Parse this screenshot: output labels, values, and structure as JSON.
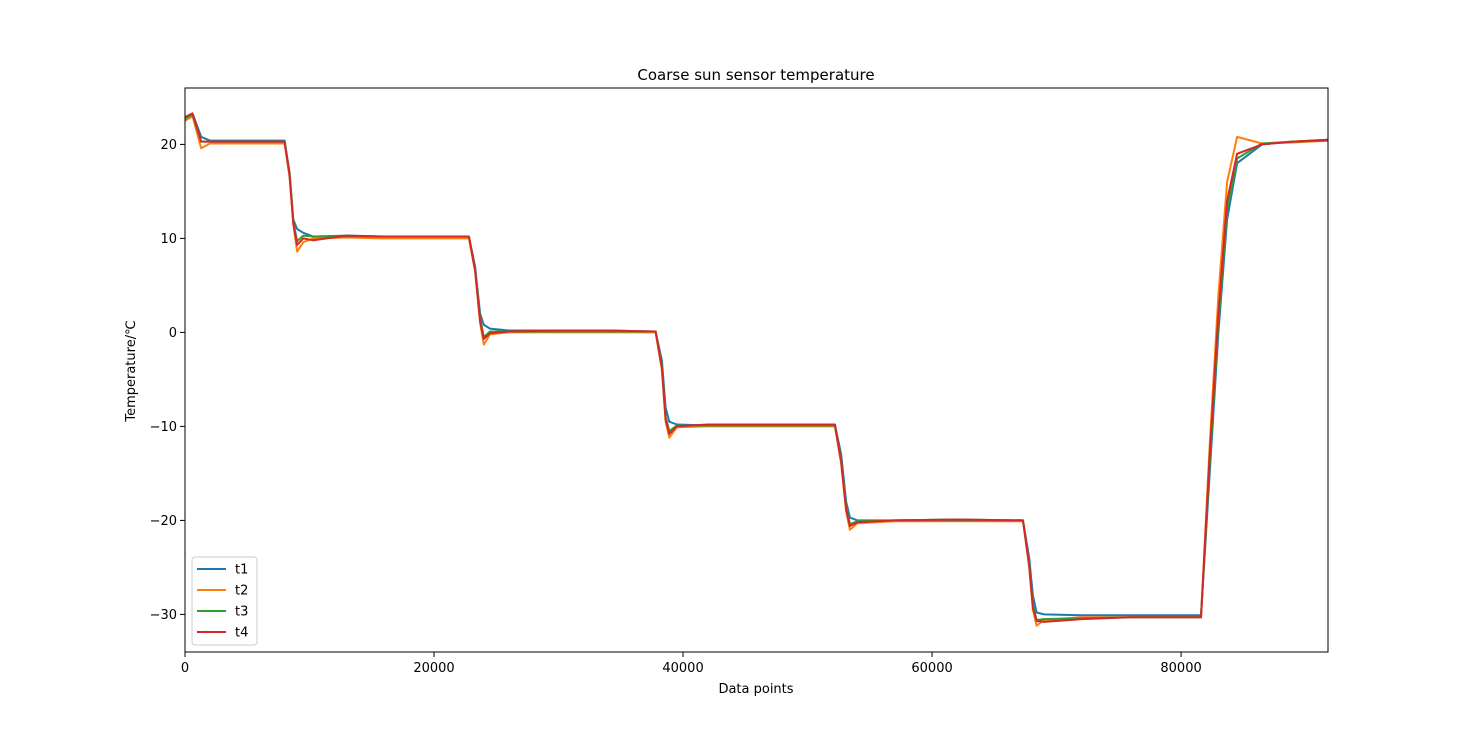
{
  "chart_data": {
    "type": "line",
    "title": "Coarse sun sensor temperature",
    "xlabel": "Data points",
    "ylabel": "Temperature/℃",
    "xlim": [
      0,
      91800
    ],
    "ylim": [
      -34,
      26
    ],
    "xticks": [
      0,
      20000,
      40000,
      60000,
      80000
    ],
    "xtick_labels": [
      "0",
      "20000",
      "40000",
      "60000",
      "80000"
    ],
    "yticks": [
      -30,
      -20,
      -10,
      0,
      10,
      20
    ],
    "ytick_labels": [
      "−30",
      "−20",
      "−10",
      "0",
      "10",
      "20"
    ],
    "grid": false,
    "legend_position": "bottom-left",
    "colors": {
      "t1": "#1f77b4",
      "t2": "#ff7f0e",
      "t3": "#2ca02c",
      "t4": "#d62728"
    },
    "series": [
      {
        "name": "t1",
        "x": [
          0,
          600,
          1300,
          2000,
          5000,
          8000,
          8400,
          8700,
          9000,
          9500,
          10300,
          13000,
          16000,
          19000,
          22800,
          23300,
          23700,
          24000,
          24500,
          26000,
          30000,
          34000,
          37800,
          38300,
          38600,
          38900,
          39500,
          42000,
          46000,
          50000,
          52200,
          52700,
          53100,
          53400,
          54000,
          57000,
          62000,
          67300,
          67800,
          68100,
          68400,
          69000,
          72000,
          76000,
          81600,
          82300,
          83000,
          83700,
          84500,
          86500,
          89000,
          91800
        ],
        "values": [
          22.8,
          23.3,
          20.8,
          20.4,
          20.4,
          20.4,
          17.0,
          12.0,
          11.0,
          10.6,
          10.2,
          10.3,
          10.2,
          10.2,
          10.2,
          7.0,
          2.0,
          0.8,
          0.4,
          0.2,
          0.2,
          0.2,
          0.1,
          -3.0,
          -8.0,
          -9.5,
          -9.8,
          -9.9,
          -9.8,
          -9.8,
          -9.8,
          -13.0,
          -18.0,
          -19.7,
          -20.0,
          -20.0,
          -19.9,
          -20.0,
          -24.0,
          -28.0,
          -29.8,
          -30.0,
          -30.1,
          -30.1,
          -30.1,
          -15.0,
          0.0,
          12.0,
          18.0,
          20.0,
          20.3,
          20.5
        ]
      },
      {
        "name": "t2",
        "x": [
          0,
          600,
          1300,
          2000,
          5000,
          8000,
          8400,
          8700,
          9000,
          9500,
          10300,
          13000,
          16000,
          19000,
          22800,
          23300,
          23700,
          24000,
          24500,
          26000,
          30000,
          34000,
          37800,
          38300,
          38600,
          38900,
          39500,
          42000,
          46000,
          50000,
          52200,
          52700,
          53100,
          53400,
          54000,
          57000,
          62000,
          67300,
          67800,
          68100,
          68400,
          69000,
          72000,
          76000,
          81600,
          82300,
          83000,
          83700,
          84500,
          86500,
          89000,
          91800
        ],
        "values": [
          22.5,
          23.0,
          19.6,
          20.1,
          20.1,
          20.1,
          16.5,
          11.5,
          8.6,
          9.6,
          10.0,
          10.1,
          10.0,
          10.0,
          10.0,
          6.5,
          1.0,
          -1.3,
          -0.2,
          0.0,
          0.0,
          0.0,
          0.0,
          -4.0,
          -9.5,
          -11.2,
          -10.1,
          -10.0,
          -10.0,
          -10.0,
          -10.0,
          -14.0,
          -19.0,
          -21.0,
          -20.3,
          -20.1,
          -20.1,
          -20.1,
          -25.0,
          -29.5,
          -31.2,
          -30.6,
          -30.3,
          -30.3,
          -30.3,
          -12.0,
          4.0,
          16.0,
          20.8,
          20.1,
          20.2,
          20.4
        ]
      },
      {
        "name": "t3",
        "x": [
          0,
          600,
          1300,
          2000,
          5000,
          8000,
          8400,
          8700,
          9000,
          9500,
          10300,
          13000,
          16000,
          19000,
          22800,
          23300,
          23700,
          24000,
          24500,
          26000,
          30000,
          34000,
          37800,
          38300,
          38600,
          38900,
          39500,
          42000,
          46000,
          50000,
          52200,
          52700,
          53100,
          53400,
          54000,
          57000,
          62000,
          67300,
          67800,
          68100,
          68400,
          69000,
          72000,
          76000,
          81600,
          82300,
          83000,
          83700,
          84500,
          86500,
          89000,
          91800
        ],
        "values": [
          22.7,
          23.2,
          20.3,
          20.3,
          20.3,
          20.3,
          16.8,
          11.8,
          9.7,
          10.3,
          10.2,
          10.2,
          10.2,
          10.2,
          10.2,
          6.8,
          1.5,
          -0.5,
          0.1,
          0.1,
          0.1,
          0.1,
          0.1,
          -3.5,
          -9.0,
          -10.5,
          -9.9,
          -9.9,
          -9.9,
          -9.9,
          -9.9,
          -13.5,
          -18.5,
          -20.4,
          -20.1,
          -20.0,
          -20.0,
          -20.0,
          -24.5,
          -29.0,
          -30.6,
          -30.5,
          -30.4,
          -30.3,
          -30.3,
          -14.0,
          1.0,
          13.0,
          18.5,
          20.1,
          20.3,
          20.4
        ]
      },
      {
        "name": "t4",
        "x": [
          0,
          600,
          1300,
          2000,
          5000,
          8000,
          8400,
          8700,
          9000,
          9500,
          10300,
          13000,
          16000,
          19000,
          22800,
          23300,
          23700,
          24000,
          24500,
          26000,
          30000,
          34000,
          37800,
          38300,
          38600,
          38900,
          39500,
          42000,
          46000,
          50000,
          52200,
          52700,
          53100,
          53400,
          54000,
          57000,
          62000,
          67300,
          67800,
          68100,
          68400,
          69000,
          72000,
          76000,
          81600,
          82300,
          83000,
          83700,
          84500,
          86500,
          89000,
          91800
        ],
        "values": [
          22.9,
          23.3,
          20.3,
          20.3,
          20.3,
          20.3,
          16.7,
          11.6,
          9.3,
          10.0,
          9.8,
          10.3,
          10.2,
          10.2,
          10.2,
          6.6,
          1.2,
          -0.7,
          -0.1,
          0.1,
          0.2,
          0.2,
          0.1,
          -3.8,
          -9.2,
          -10.8,
          -10.0,
          -9.8,
          -9.8,
          -9.8,
          -9.8,
          -13.8,
          -18.8,
          -20.6,
          -20.2,
          -20.0,
          -19.9,
          -20.0,
          -24.8,
          -29.3,
          -30.7,
          -30.8,
          -30.5,
          -30.3,
          -30.3,
          -13.0,
          2.0,
          14.0,
          19.0,
          20.0,
          20.3,
          20.5
        ]
      }
    ]
  }
}
